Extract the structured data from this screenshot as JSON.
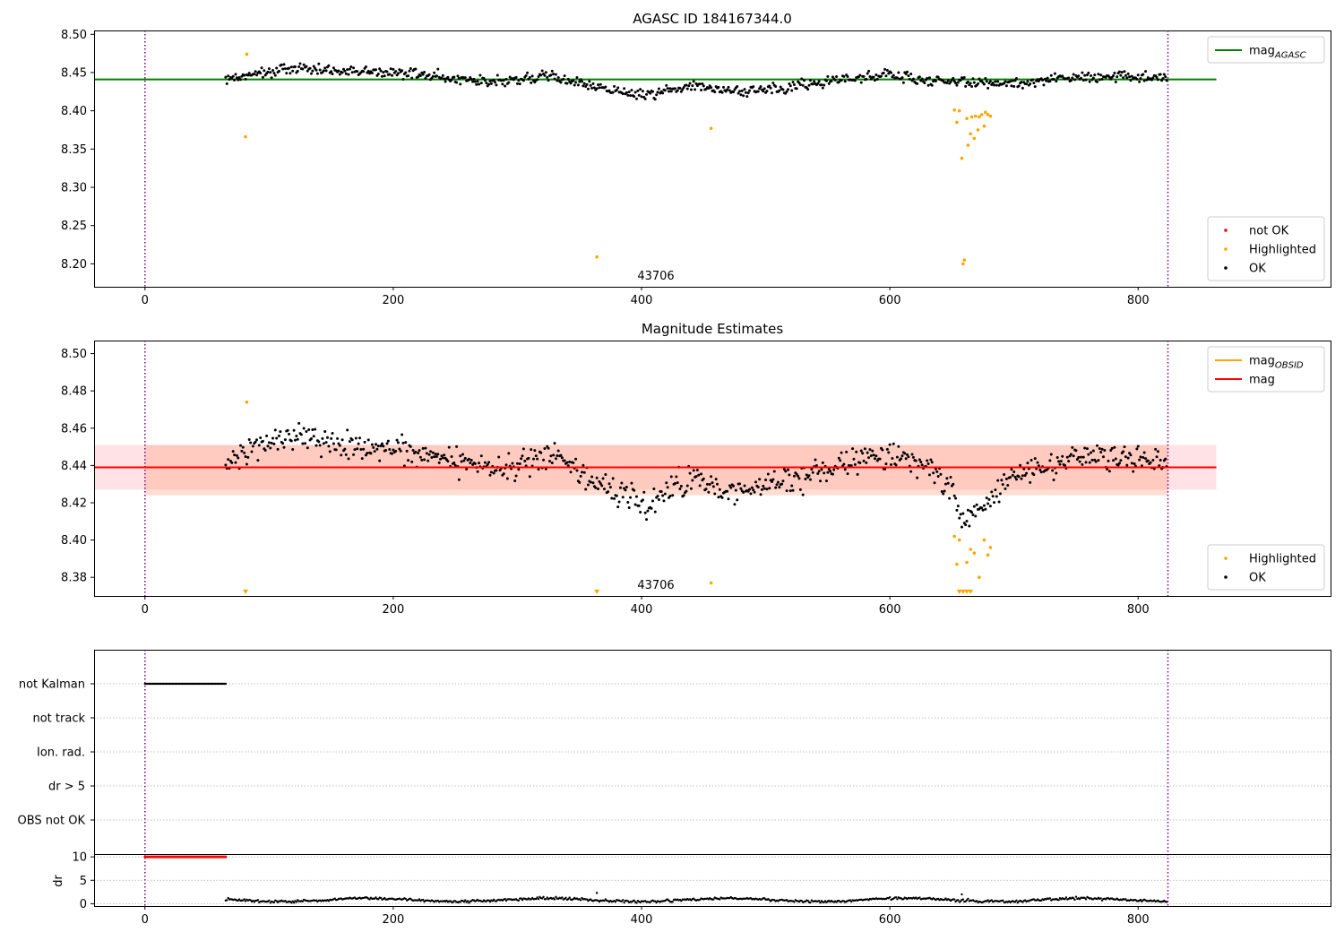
{
  "figure": {
    "panel1_title": "AGASC ID 184167344.0",
    "panel2_title": "Magnitude Estimates",
    "obsid_label": "43706"
  },
  "chart_data": [
    {
      "type": "scatter",
      "title": "AGASC ID 184167344.0",
      "xlabel": "",
      "ylabel": "",
      "xlim": [
        -41,
        955
      ],
      "ylim": [
        8.17,
        8.505
      ],
      "xticks": [
        0,
        200,
        400,
        600,
        800
      ],
      "yticks": [
        8.2,
        8.25,
        8.3,
        8.35,
        8.4,
        8.45,
        8.5
      ],
      "hlines": [
        {
          "name": "mag_AGASC",
          "y": 8.441,
          "x_range": [
            -41,
            863
          ],
          "color": "#008000"
        }
      ],
      "vlines": [
        {
          "x": 0,
          "color": "#800080",
          "style": "dotted"
        },
        {
          "x": 824,
          "color": "#800080",
          "style": "dotted"
        }
      ],
      "annotation": {
        "text": "43706",
        "x": 412,
        "y": 8.178
      },
      "legends": [
        {
          "location": "top-right",
          "entries": [
            {
              "label_main": "mag",
              "label_sub": "AGASC",
              "kind": "line",
              "color": "#008000"
            }
          ]
        },
        {
          "location": "bottom-right",
          "entries": [
            {
              "label": "not OK",
              "kind": "marker",
              "color": "#ff0000"
            },
            {
              "label": "Highlighted",
              "kind": "marker",
              "color": "#ffa500"
            },
            {
              "label": "OK",
              "kind": "marker",
              "color": "#000000"
            }
          ]
        }
      ],
      "series": [
        {
          "name": "OK",
          "color": "#000000",
          "x_range": [
            65,
            823
          ],
          "trend": {
            "x": [
              65,
              120,
              200,
              280,
              330,
              360,
              400,
              440,
              480,
              520,
              560,
              600,
              630,
              700,
              760,
              823
            ],
            "y": [
              8.443,
              8.455,
              8.45,
              8.438,
              8.445,
              8.432,
              8.42,
              8.432,
              8.425,
              8.432,
              8.44,
              8.447,
              8.44,
              8.435,
              8.445,
              8.443
            ]
          },
          "noise": 0.008
        },
        {
          "name": "Highlighted",
          "color": "#ffa500",
          "points": [
            [
              82,
              8.474
            ],
            [
              81,
              8.366
            ],
            [
              364,
              8.209
            ],
            [
              456,
              8.377
            ],
            [
              652,
              8.401
            ],
            [
              654,
              8.385
            ],
            [
              656,
              8.4
            ],
            [
              658,
              8.338
            ],
            [
              659,
              8.2
            ],
            [
              660,
              8.205
            ],
            [
              662,
              8.39
            ],
            [
              663,
              8.355
            ],
            [
              665,
              8.37
            ],
            [
              666,
              8.392
            ],
            [
              668,
              8.364
            ],
            [
              669,
              8.393
            ],
            [
              671,
              8.375
            ],
            [
              672,
              8.392
            ],
            [
              674,
              8.395
            ],
            [
              676,
              8.38
            ],
            [
              677,
              8.398
            ],
            [
              679,
              8.395
            ],
            [
              681,
              8.393
            ]
          ]
        }
      ]
    },
    {
      "type": "scatter",
      "title": "Magnitude Estimates",
      "xlabel": "",
      "ylabel": "",
      "xlim": [
        -41,
        955
      ],
      "ylim": [
        8.37,
        8.507
      ],
      "xticks": [
        0,
        200,
        400,
        600,
        800
      ],
      "yticks": [
        8.38,
        8.4,
        8.42,
        8.44,
        8.46,
        8.48,
        8.5
      ],
      "bands": [
        {
          "y_range": [
            8.427,
            8.451
          ],
          "x_range": [
            -41,
            863
          ],
          "color": "#ffb6c1",
          "opacity": 0.4
        },
        {
          "y_range": [
            8.424,
            8.451
          ],
          "x_range": [
            0,
            824
          ],
          "color": "#ffa07a",
          "opacity": 0.35
        }
      ],
      "hlines": [
        {
          "name": "mag_OBSID",
          "y": 8.439,
          "x_range": [
            0,
            824
          ],
          "color": "#ffa500"
        },
        {
          "name": "mag",
          "y": 8.439,
          "x_range": [
            -41,
            863
          ],
          "color": "#ff0000"
        }
      ],
      "vlines": [
        {
          "x": 0,
          "color": "#800080",
          "style": "dotted"
        },
        {
          "x": 824,
          "color": "#800080",
          "style": "dotted"
        }
      ],
      "annotation": {
        "text": "43706",
        "x": 412,
        "y": 8.373
      },
      "legends": [
        {
          "location": "top-right",
          "entries": [
            {
              "label_main": "mag",
              "label_sub": "OBSID",
              "kind": "line",
              "color": "#ffa500"
            },
            {
              "label": "mag",
              "kind": "line",
              "color": "#ff0000"
            }
          ]
        },
        {
          "location": "bottom-right",
          "entries": [
            {
              "label": "Highlighted",
              "kind": "marker",
              "color": "#ffa500"
            },
            {
              "label": "OK",
              "kind": "marker",
              "color": "#000000"
            }
          ]
        }
      ],
      "series": [
        {
          "name": "OK",
          "color": "#000000",
          "x_range": [
            65,
            823
          ],
          "trend": {
            "x": [
              65,
              120,
              200,
              280,
              330,
              360,
              400,
              440,
              480,
              520,
              560,
              600,
              630,
              650,
              660,
              700,
              760,
              823
            ],
            "y": [
              8.443,
              8.455,
              8.45,
              8.438,
              8.445,
              8.432,
              8.42,
              8.432,
              8.425,
              8.432,
              8.44,
              8.447,
              8.44,
              8.425,
              8.41,
              8.435,
              8.445,
              8.443
            ]
          },
          "noise": 0.008
        },
        {
          "name": "Highlighted",
          "color": "#ffa500",
          "points": [
            [
              82,
              8.474
            ],
            [
              456,
              8.377
            ],
            [
              652,
              8.402
            ],
            [
              654,
              8.387
            ],
            [
              656,
              8.4
            ],
            [
              662,
              8.388
            ],
            [
              665,
              8.395
            ],
            [
              668,
              8.393
            ],
            [
              672,
              8.38
            ],
            [
              676,
              8.4
            ],
            [
              679,
              8.392
            ],
            [
              681,
              8.396
            ]
          ]
        },
        {
          "name": "Highlighted (off scale)",
          "color": "#ffa500",
          "marker": "triangle-down",
          "points": [
            [
              81,
              8.372
            ],
            [
              364,
              8.372
            ],
            [
              656,
              8.372
            ],
            [
              659,
              8.372
            ],
            [
              662,
              8.372
            ],
            [
              665,
              8.372
            ]
          ]
        }
      ]
    },
    {
      "type": "scatter",
      "title": "",
      "xlabel": "",
      "ylabel": "",
      "xlim": [
        -41,
        955
      ],
      "categories": [
        "not Kalman",
        "not track",
        "Ion. rad.",
        "dr > 5",
        "OBS not OK"
      ],
      "flags": [
        {
          "category": "not Kalman",
          "x_range": [
            0,
            65
          ],
          "color": "#000000"
        }
      ],
      "vlines": [
        {
          "x": 0,
          "color": "#800080",
          "style": "dotted"
        },
        {
          "x": 824,
          "color": "#800080",
          "style": "dotted"
        }
      ]
    },
    {
      "type": "scatter",
      "title": "",
      "xlabel": "",
      "ylabel": "dr",
      "xlim": [
        -41,
        955
      ],
      "ylim": [
        -0.5,
        10.6
      ],
      "xticks": [
        0,
        200,
        400,
        600,
        800
      ],
      "yticks": [
        0,
        5,
        10
      ],
      "vlines": [
        {
          "x": 0,
          "color": "#800080",
          "style": "dotted"
        },
        {
          "x": 824,
          "color": "#800080",
          "style": "dotted"
        }
      ],
      "series": [
        {
          "name": "not OK",
          "color": "#ff0000",
          "x_range": [
            0,
            65
          ],
          "y_value": 10
        },
        {
          "name": "OK",
          "color": "#000000",
          "x_range": [
            65,
            823
          ],
          "mean": 0.8,
          "noise": 0.45,
          "outliers": [
            [
              364,
              2.3
            ],
            [
              658,
              2.0
            ]
          ]
        }
      ]
    }
  ]
}
